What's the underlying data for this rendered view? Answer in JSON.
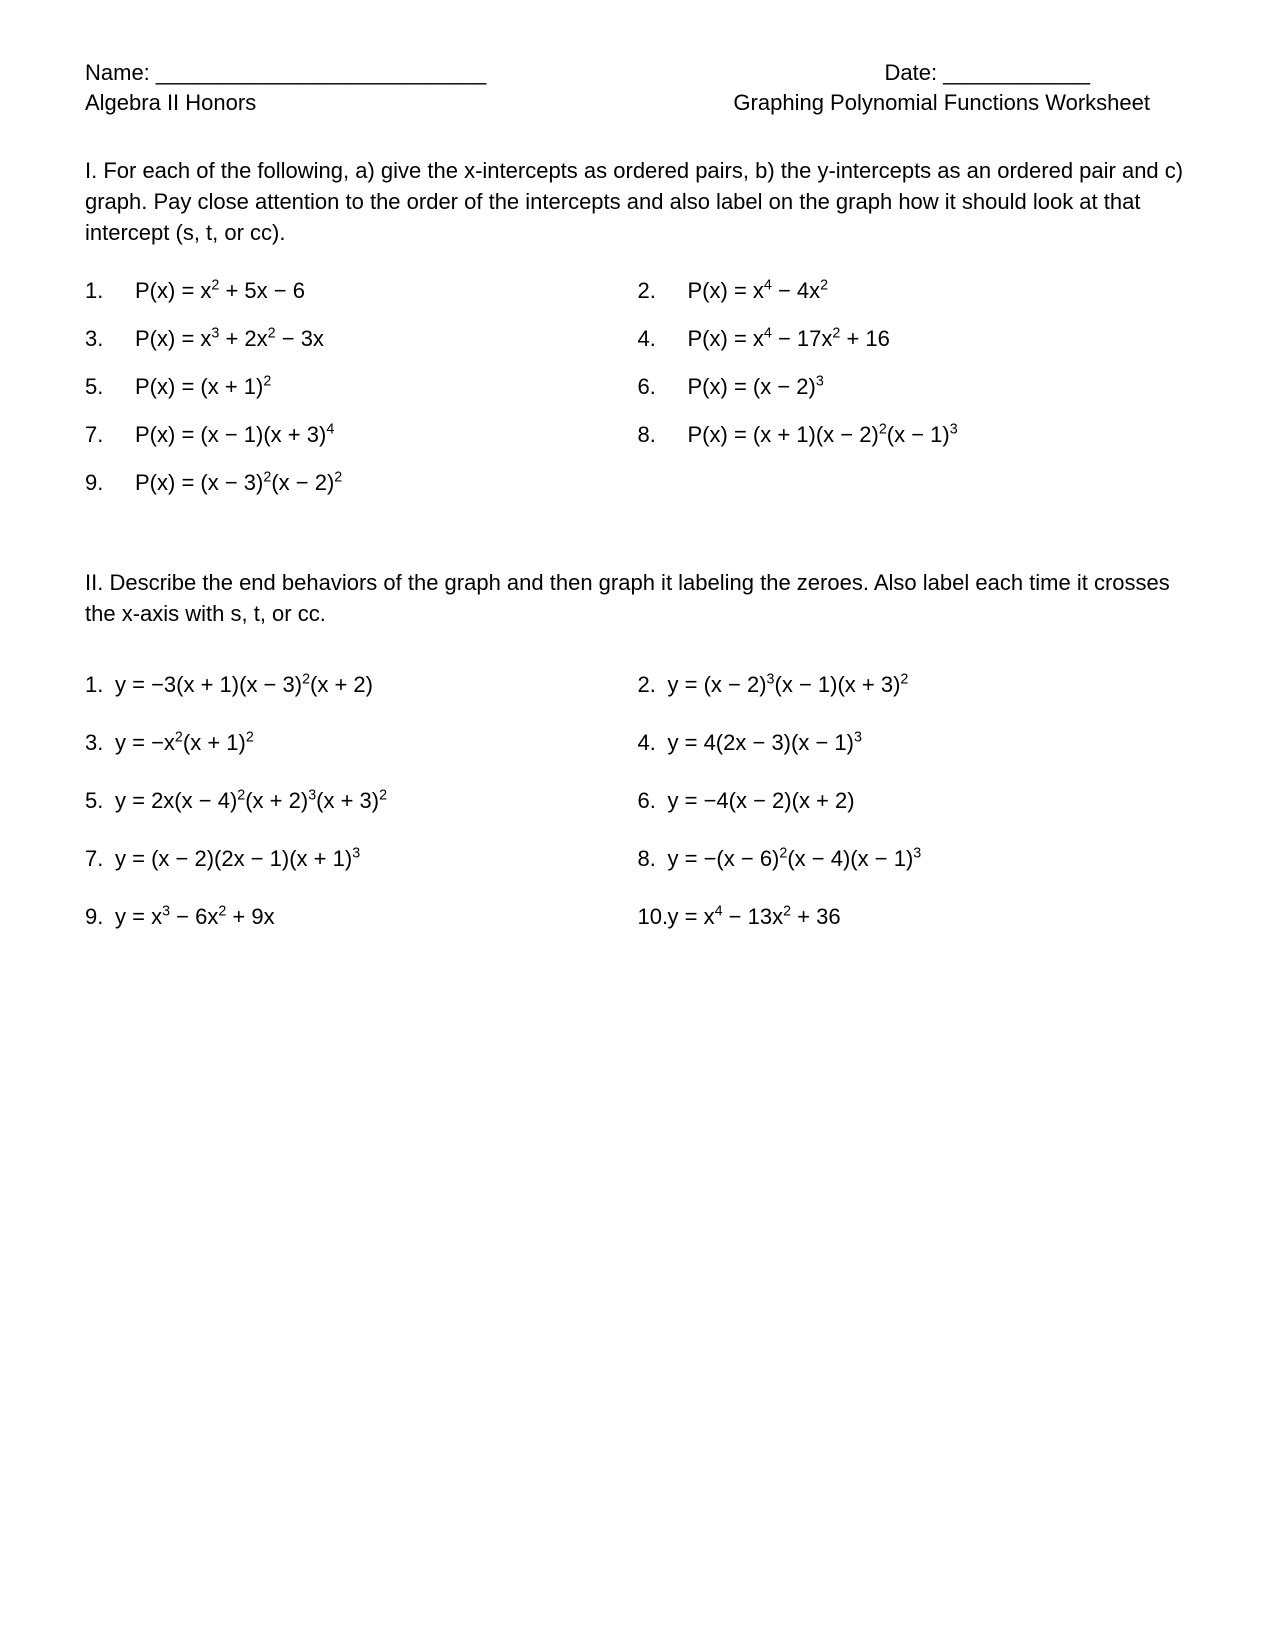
{
  "header": {
    "name_label": "Name: ___________________________",
    "date_label": "Date: ____________",
    "course": "Algebra II Honors",
    "title": "Graphing Polynomial Functions Worksheet"
  },
  "section1": {
    "instructions": "I. For each of the following, a) give the x-intercepts as ordered pairs, b) the y-intercepts as an ordered pair and c) graph.  Pay close attention to the order of the intercepts and also label on the graph how it should look at that intercept (s, t, or cc).",
    "problems": [
      {
        "num": "1.",
        "eq_html": "P(x) = x<sup>2</sup> + 5x − 6"
      },
      {
        "num": "2.",
        "eq_html": "P(x) = x<sup>4</sup> − 4x<sup>2</sup>"
      },
      {
        "num": "3.",
        "eq_html": "P(x) = x<sup>3</sup> + 2x<sup>2</sup> − 3x"
      },
      {
        "num": "4.",
        "eq_html": "P(x) = x<sup>4</sup> − 17x<sup>2</sup> + 16"
      },
      {
        "num": "5.",
        "eq_html": "P(x) = (x + 1)<sup>2</sup>"
      },
      {
        "num": "6.",
        "eq_html": "P(x) = (x − 2)<sup>3</sup>"
      },
      {
        "num": "7.",
        "eq_html": "P(x) = (x − 1)(x + 3)<sup>4</sup>"
      },
      {
        "num": "8.",
        "eq_html": "P(x) = (x + 1)(x − 2)<sup>2</sup>(x − 1)<sup>3</sup>"
      },
      {
        "num": "9.",
        "eq_html": "P(x) = (x − 3)<sup>2</sup>(x − 2)<sup>2</sup>"
      }
    ]
  },
  "section2": {
    "instructions": "II. Describe the end behaviors of the graph and then graph it labeling the zeroes.  Also label each time it crosses the x-axis with s, t, or cc.",
    "problems": [
      {
        "num": "1.",
        "eq_html": "y = −3(x + 1)(x − 3)<sup>2</sup>(x + 2)"
      },
      {
        "num": "2.",
        "eq_html": "y = (x − 2)<sup>3</sup>(x − 1)(x + 3)<sup>2</sup>"
      },
      {
        "num": "3.",
        "eq_html": "y = −x<sup>2</sup>(x + 1)<sup>2</sup>"
      },
      {
        "num": "4.",
        "eq_html": "y = 4(2x − 3)(x − 1)<sup>3</sup>"
      },
      {
        "num": "5.",
        "eq_html": "y = 2x(x − 4)<sup>2</sup>(x + 2)<sup>3</sup>(x + 3)<sup>2</sup>"
      },
      {
        "num": "6.",
        "eq_html": "y = −4(x − 2)(x + 2)"
      },
      {
        "num": "7.",
        "eq_html": "y = (x − 2)(2x − 1)(x + 1)<sup>3</sup>"
      },
      {
        "num": "8.",
        "eq_html": "y = −(x − 6)<sup>2</sup>(x − 4)(x − 1)<sup>3</sup>"
      },
      {
        "num": "9.",
        "eq_html": "y = x<sup>3</sup> − 6x<sup>2</sup> + 9x"
      },
      {
        "num": "10.",
        "eq_html": "y = x<sup>4</sup> − 13x<sup>2</sup> + 36"
      }
    ]
  }
}
